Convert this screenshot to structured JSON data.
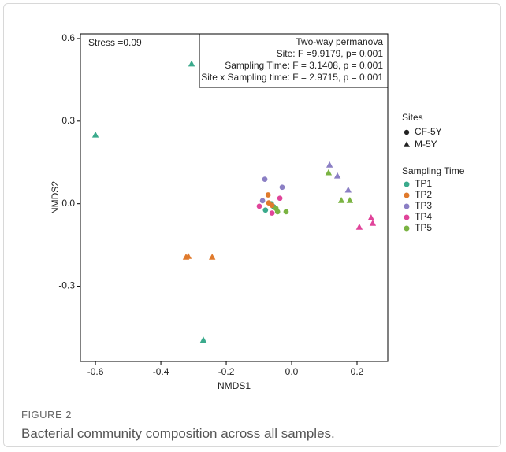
{
  "chart_data": {
    "type": "scatter",
    "xlabel": "NMDS1",
    "ylabel": "NMDS2",
    "annotation": "Stress =0.09",
    "stats_box": [
      "Two-way permanova",
      "Site: F =9.9179, p= 0.001",
      "Sampling Time: F = 3.1408, p = 0.001",
      "Site x Sampling time: F = 2.9715, p = 0.001"
    ],
    "xlim": [
      -0.646,
      0.294
    ],
    "ylim": [
      -0.573,
      0.617
    ],
    "xticks": [
      -0.6,
      -0.4,
      -0.2,
      {
        "value": 0,
        "label": "0.0"
      },
      0.2
    ],
    "yticks": [
      -0.3,
      {
        "value": 0,
        "label": "0.0"
      },
      0.3,
      0.6
    ],
    "grid": false,
    "shape_legend": {
      "title": "Sites",
      "entries": [
        {
          "label": "CF-5Y",
          "shape": "circle"
        },
        {
          "label": "M-5Y",
          "shape": "triangle"
        }
      ]
    },
    "color_legend": {
      "title": "Sampling Time",
      "entries": [
        {
          "label": "TP1",
          "color": "#3aaa8c"
        },
        {
          "label": "TP2",
          "color": "#e07a2c"
        },
        {
          "label": "TP3",
          "color": "#8b7fc4"
        },
        {
          "label": "TP4",
          "color": "#e0449a"
        },
        {
          "label": "TP5",
          "color": "#7ab342"
        }
      ]
    },
    "series": [
      {
        "color": "#3aaa8c",
        "shape": "circle",
        "x": [
          -0.08,
          -0.055,
          -0.062
        ],
        "values": [
          -0.023,
          -0.011,
          0.0
        ]
      },
      {
        "color": "#3aaa8c",
        "shape": "triangle",
        "x": [
          -0.306,
          -0.6,
          -0.27
        ],
        "values": [
          0.507,
          0.249,
          -0.496
        ]
      },
      {
        "color": "#e07a2c",
        "shape": "circle",
        "x": [
          -0.072,
          -0.07,
          -0.06
        ],
        "values": [
          0.032,
          0.003,
          -0.006
        ]
      },
      {
        "color": "#e07a2c",
        "shape": "triangle",
        "x": [
          -0.323,
          -0.316,
          -0.243
        ],
        "values": [
          -0.195,
          -0.192,
          -0.195
        ]
      },
      {
        "color": "#8b7fc4",
        "shape": "circle",
        "x": [
          -0.082,
          -0.029,
          -0.089
        ],
        "values": [
          0.089,
          0.06,
          0.011
        ]
      },
      {
        "color": "#8b7fc4",
        "shape": "triangle",
        "x": [
          0.116,
          0.14,
          0.173
        ],
        "values": [
          0.14,
          0.1,
          0.049
        ]
      },
      {
        "color": "#e0449a",
        "shape": "circle",
        "x": [
          -0.099,
          -0.06,
          -0.036
        ],
        "values": [
          -0.009,
          -0.034,
          0.02
        ]
      },
      {
        "color": "#e0449a",
        "shape": "triangle",
        "x": [
          0.243,
          0.248,
          0.207
        ],
        "values": [
          -0.052,
          -0.072,
          -0.086
        ]
      },
      {
        "color": "#7ab342",
        "shape": "circle",
        "x": [
          -0.043,
          -0.017,
          -0.048
        ],
        "values": [
          -0.029,
          -0.029,
          -0.017
        ]
      },
      {
        "color": "#7ab342",
        "shape": "triangle",
        "x": [
          0.113,
          0.152,
          0.178
        ],
        "values": [
          0.112,
          0.011,
          0.011
        ]
      }
    ]
  },
  "figure": {
    "label": "FIGURE 2",
    "caption": "Bacterial community composition across all samples."
  }
}
